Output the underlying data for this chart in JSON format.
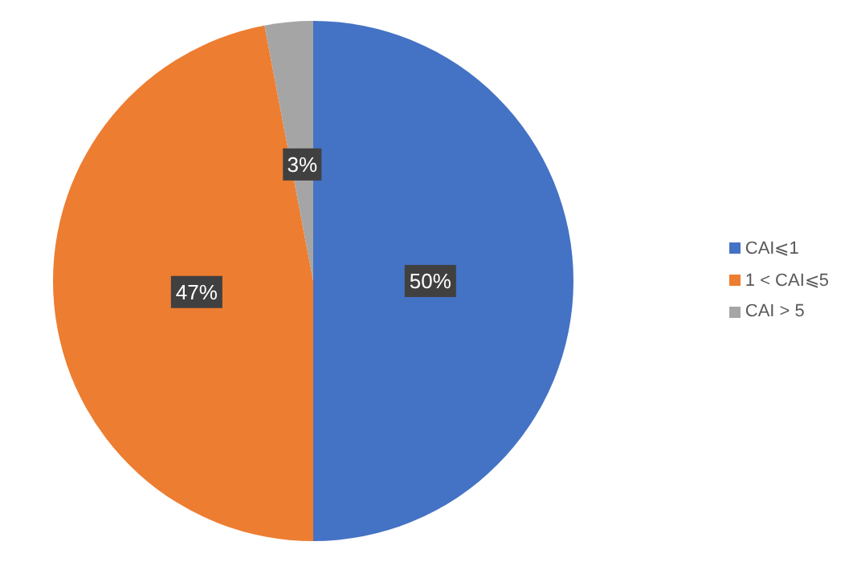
{
  "chart_data": {
    "type": "pie",
    "categories": [
      "CAI⩽1",
      "1 < CAI⩽5",
      "CAI > 5"
    ],
    "values": [
      50,
      47,
      3
    ],
    "colors": [
      "#4472c4",
      "#ed7d31",
      "#a5a5a5"
    ],
    "value_labels": [
      "50%",
      "47%",
      "3%"
    ],
    "legend": "right"
  }
}
